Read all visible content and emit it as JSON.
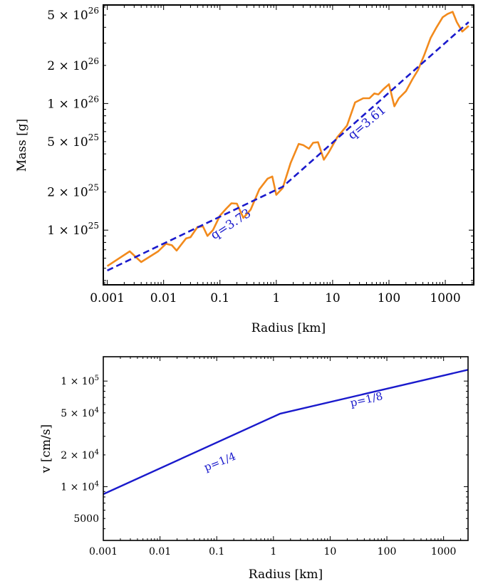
{
  "chart_data": [
    {
      "type": "line",
      "xlabel": "Radius [km]",
      "ylabel": "Mass [g]",
      "xscale": "log",
      "yscale": "log",
      "xlim": [
        0.00085,
        3200
      ],
      "ylim": [
        3.7e+24,
        6e+26
      ],
      "x_ticks": [
        {
          "value": 0.001,
          "label": "0.001"
        },
        {
          "value": 0.01,
          "label": "0.01"
        },
        {
          "value": 0.1,
          "label": "0.1"
        },
        {
          "value": 1,
          "label": "1"
        },
        {
          "value": 10,
          "label": "10"
        },
        {
          "value": 100,
          "label": "100"
        },
        {
          "value": 1000,
          "label": "1000"
        }
      ],
      "y_ticks": [
        {
          "value": 1e+25,
          "mant": "1",
          "exp": "25"
        },
        {
          "value": 2e+25,
          "mant": "2",
          "exp": "25"
        },
        {
          "value": 5e+25,
          "mant": "5",
          "exp": "25"
        },
        {
          "value": 1e+26,
          "mant": "1",
          "exp": "26"
        },
        {
          "value": 2e+26,
          "mant": "2",
          "exp": "26"
        },
        {
          "value": 5e+26,
          "mant": "5",
          "exp": "26"
        }
      ],
      "times_sign": "×",
      "base": "10",
      "series": [
        {
          "color": "#f28a1c",
          "style": "solid",
          "x": [
            0.001,
            0.0025,
            0.004,
            0.008,
            0.011,
            0.014,
            0.017,
            0.025,
            0.03,
            0.04,
            0.05,
            0.06,
            0.075,
            0.1,
            0.13,
            0.16,
            0.2,
            0.26,
            0.35,
            0.5,
            0.7,
            0.85,
            1.0,
            1.3,
            1.8,
            2.5,
            3.0,
            3.8,
            4.5,
            5.5,
            7.0,
            8.5,
            12,
            18,
            25,
            35,
            45,
            55,
            65,
            80,
            100,
            125,
            150,
            200,
            260,
            330,
            420,
            550,
            700,
            900,
            1100,
            1350,
            1600,
            2000,
            2600
          ],
          "y": [
            5.2e+24,
            6.8e+24,
            5.6e+24,
            6.8e+24,
            7.8e+24,
            7.6e+24,
            6.9e+24,
            8.6e+24,
            8.8e+24,
            1.06e+25,
            1.07e+25,
            9e+24,
            1e+25,
            1.3e+25,
            1.48e+25,
            1.63e+25,
            1.62e+25,
            1.25e+25,
            1.45e+25,
            2.1e+25,
            2.55e+25,
            2.65e+25,
            1.9e+25,
            2.15e+25,
            3.4e+25,
            4.8e+25,
            4.7e+25,
            4.4e+25,
            4.9e+25,
            4.95e+25,
            3.6e+25,
            4.1e+25,
            5.4e+25,
            6.7e+25,
            1.02e+26,
            1.1e+26,
            1.1e+26,
            1.2e+26,
            1.18e+26,
            1.3e+26,
            1.42e+26,
            9.5e+25,
            1.1e+26,
            1.25e+26,
            1.55e+26,
            1.85e+26,
            2.4e+26,
            3.3e+26,
            4e+26,
            4.8e+26,
            5.1e+26,
            5.3e+26,
            4.4e+26,
            3.7e+26,
            4.1e+26
          ]
        },
        {
          "color": "#1a1acc",
          "style": "dashed",
          "x": [
            0.001,
            1.3,
            2600
          ],
          "y": [
            4.8e+24,
            2.2e+25,
            4.4e+26
          ]
        }
      ],
      "annotations": [
        {
          "text": "q=3.73",
          "x": 0.17,
          "y": 1.05e+25,
          "angle": -33
        },
        {
          "text": "q=3.61",
          "x": 45,
          "y": 6.7e+25,
          "angle": -40
        }
      ]
    },
    {
      "type": "line",
      "xlabel": "Radius [km]",
      "ylabel": "v [cm/s]",
      "xscale": "log",
      "yscale": "log",
      "xlim": [
        0.001,
        2700
      ],
      "ylim": [
        3100,
        170000
      ],
      "x_ticks": [
        {
          "value": 0.001,
          "label": "0.001"
        },
        {
          "value": 0.01,
          "label": "0.01"
        },
        {
          "value": 0.1,
          "label": "0.1"
        },
        {
          "value": 1,
          "label": "1"
        },
        {
          "value": 10,
          "label": "10"
        },
        {
          "value": 100,
          "label": "100"
        },
        {
          "value": 1000,
          "label": "1000"
        }
      ],
      "y_ticks": [
        {
          "value": 5000,
          "label": "5000"
        },
        {
          "value": 10000,
          "mant": "1",
          "exp": "4"
        },
        {
          "value": 20000,
          "mant": "2",
          "exp": "4"
        },
        {
          "value": 50000,
          "mant": "5",
          "exp": "4"
        },
        {
          "value": 100000,
          "mant": "1",
          "exp": "5"
        }
      ],
      "times_sign": "×",
      "base": "10",
      "series": [
        {
          "color": "#1a1acc",
          "style": "solid",
          "x": [
            0.001,
            1.3,
            2700
          ],
          "y": [
            8500,
            49000,
            128000
          ]
        }
      ],
      "annotations": [
        {
          "text": "p=1/4",
          "x": 0.12,
          "y": 16000,
          "angle": -22
        },
        {
          "text": "p=1/8",
          "x": 45,
          "y": 62000,
          "angle": -13
        }
      ]
    }
  ]
}
